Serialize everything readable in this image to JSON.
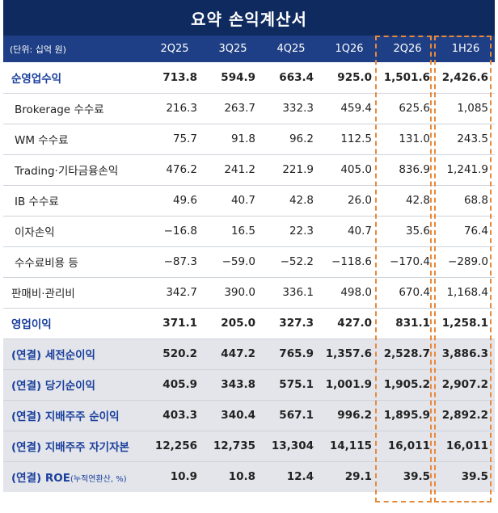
{
  "title": "요약 손익계산서",
  "unit_label": "(단위: 십억 원)",
  "columns": [
    "2Q25",
    "3Q25",
    "4Q25",
    "1Q26",
    "2Q26",
    "1H26"
  ],
  "rows": [
    {
      "label": "순영업수익",
      "values": [
        "713.8",
        "594.9",
        "663.4",
        "925.0",
        "1,501.6",
        "2,426.6"
      ]
    },
    {
      "label": "Brokerage 수수료",
      "values": [
        "216.3",
        "263.7",
        "332.3",
        "459.4",
        "625.6",
        "1,085"
      ]
    },
    {
      "label": "WM 수수료",
      "values": [
        "75.7",
        "91.8",
        "96.2",
        "112.5",
        "131.0",
        "243.5"
      ]
    },
    {
      "label": "Trading·기타금융손익",
      "values": [
        "476.2",
        "241.2",
        "221.9",
        "405.0",
        "836.9",
        "1,241.9"
      ]
    },
    {
      "label": "IB 수수료",
      "values": [
        "49.6",
        "40.7",
        "42.8",
        "26.0",
        "42.8",
        "68.8"
      ]
    },
    {
      "label": "이자손익",
      "values": [
        "−16.8",
        "16.5",
        "22.3",
        "40.7",
        "35.6",
        "76.4"
      ]
    },
    {
      "label": "수수료비용 등",
      "values": [
        "−87.3",
        "−59.0",
        "−52.2",
        "−118.6",
        "−170.4",
        "−289.0"
      ]
    },
    {
      "label": "판매비·관리비",
      "values": [
        "342.7",
        "390.0",
        "336.1",
        "498.0",
        "670.4",
        "1,168.4"
      ]
    },
    {
      "label": "영업이익",
      "values": [
        "371.1",
        "205.0",
        "327.3",
        "427.0",
        "831.1",
        "1,258.1"
      ]
    },
    {
      "label": "(연결) 세전순이익",
      "values": [
        "520.2",
        "447.2",
        "765.9",
        "1,357.6",
        "2,528.7",
        "3,886.3"
      ]
    },
    {
      "label": "(연결) 당기순이익",
      "values": [
        "405.9",
        "343.8",
        "575.1",
        "1,001.9",
        "1,905.2",
        "2,907.2"
      ]
    },
    {
      "label": "(연결) 지배주주 순이익",
      "values": [
        "403.3",
        "340.4",
        "567.1",
        "996.2",
        "1,895.9",
        "2,892.2"
      ]
    },
    {
      "label": "(연결) 지배주주 자기자본",
      "values": [
        "12,256",
        "12,735",
        "13,304",
        "14,115",
        "16,011",
        "16,011"
      ]
    },
    {
      "label": "(연결) ROE",
      "sublabel": "(누적연환산, %)",
      "values": [
        "10.9",
        "10.8",
        "12.4",
        "29.1",
        "39.5",
        "39.5"
      ]
    }
  ],
  "colors": {
    "title_bg": "#0f2a5e",
    "header_bg": "#1e3f85",
    "accent_text": "#1a3f9c",
    "highlight_box": "#e8893a",
    "shade_row": "#e3e5ea"
  }
}
